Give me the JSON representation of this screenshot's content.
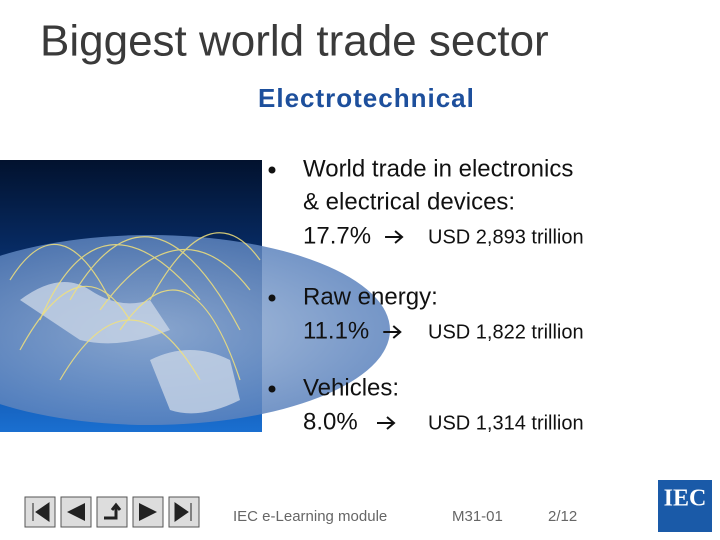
{
  "header": {
    "title": "Biggest world trade sector",
    "subtitle": "Electrotechnical"
  },
  "bullets": [
    {
      "lines": [
        "World trade in electronics",
        "& electrical devices:"
      ],
      "share": "17.7%",
      "value": "USD 2,893 trillion"
    },
    {
      "lines": [
        "Raw energy:"
      ],
      "share": "11.1%",
      "value": "USD 1,822 trillion"
    },
    {
      "lines": [
        "Vehicles:"
      ],
      "share": "8.0%",
      "value": "USD 1,314 trillion"
    }
  ],
  "footer": {
    "module": "IEC e-Learning module",
    "code": "M31-01",
    "page": "2/12",
    "logo": "IEC"
  }
}
